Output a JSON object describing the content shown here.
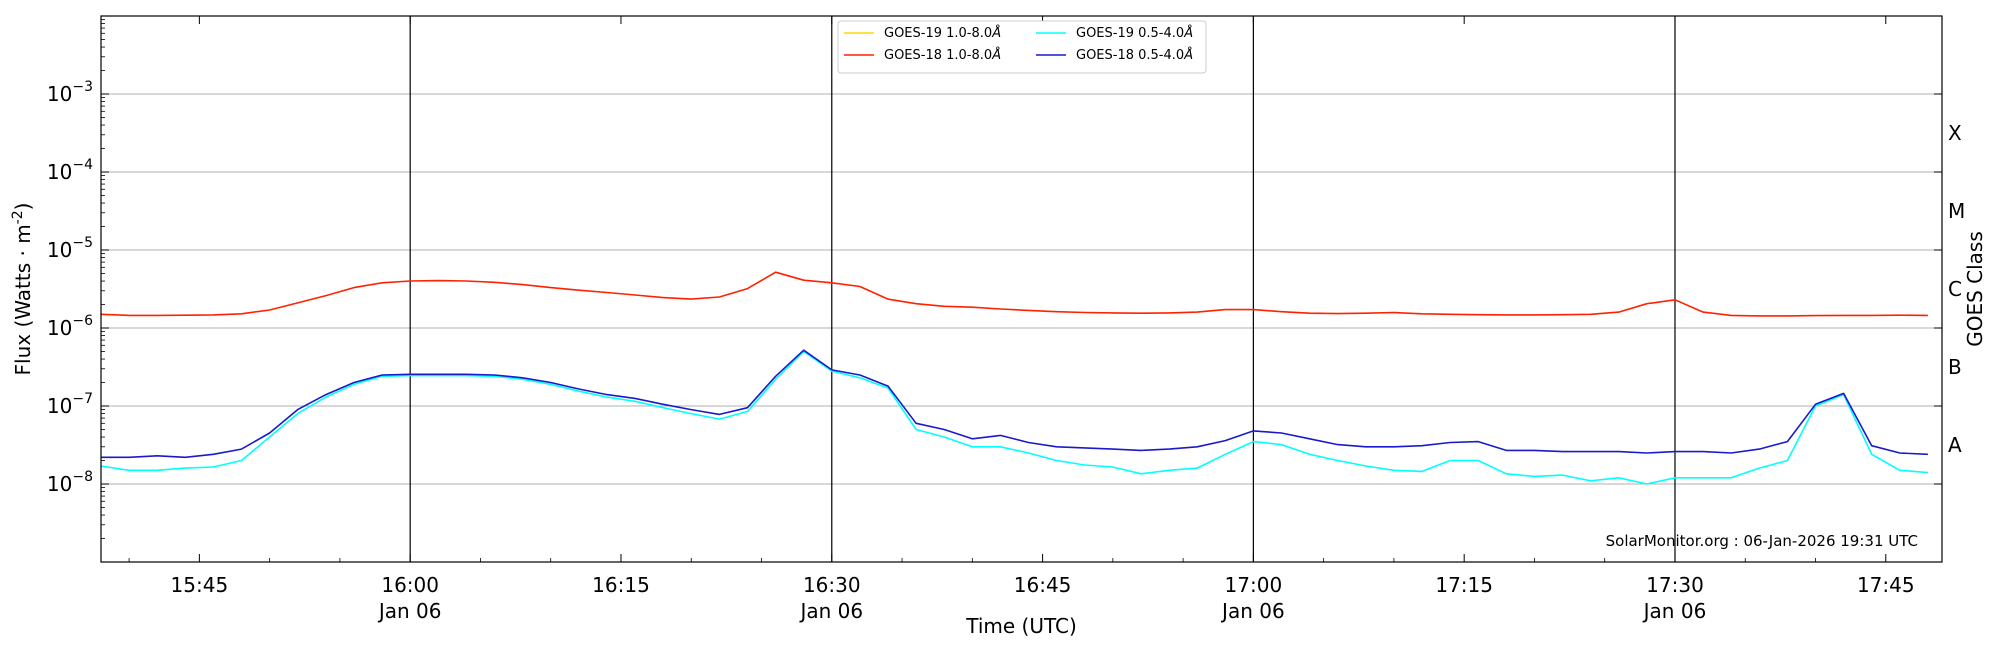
{
  "chart_data": {
    "type": "line",
    "title": "",
    "xlabel": "Time (UTC)",
    "ylabel": "Flux (Watts · m",
    "ylabel_sup": "-2",
    "ylabel_close": ")",
    "y2label": "GOES Class",
    "yscale": "log",
    "ylim": [
      1e-09,
      0.01
    ],
    "xlim": [
      "15:38",
      "17:49"
    ],
    "yticks": [
      {
        "value": 1e-08,
        "label_base": "10",
        "label_exp": "−8"
      },
      {
        "value": 1e-07,
        "label_base": "10",
        "label_exp": "−7"
      },
      {
        "value": 1e-06,
        "label_base": "10",
        "label_exp": "−6"
      },
      {
        "value": 1e-05,
        "label_base": "10",
        "label_exp": "−5"
      },
      {
        "value": 0.0001,
        "label_base": "10",
        "label_exp": "−4"
      },
      {
        "value": 0.001,
        "label_base": "10",
        "label_exp": "−3"
      }
    ],
    "xticks": [
      {
        "time": "15:45",
        "label": "15:45",
        "sublabel": ""
      },
      {
        "time": "16:00",
        "label": "16:00",
        "sublabel": "Jan 06"
      },
      {
        "time": "16:15",
        "label": "16:15",
        "sublabel": ""
      },
      {
        "time": "16:30",
        "label": "16:30",
        "sublabel": "Jan 06"
      },
      {
        "time": "16:45",
        "label": "16:45",
        "sublabel": ""
      },
      {
        "time": "17:00",
        "label": "17:00",
        "sublabel": "Jan 06"
      },
      {
        "time": "17:15",
        "label": "17:15",
        "sublabel": ""
      },
      {
        "time": "17:30",
        "label": "17:30",
        "sublabel": "Jan 06"
      },
      {
        "time": "17:45",
        "label": "17:45",
        "sublabel": ""
      }
    ],
    "day_lines": [
      "16:00",
      "16:30",
      "17:00",
      "17:30"
    ],
    "goes_classes": [
      {
        "label": "A",
        "value": 3.16e-08
      },
      {
        "label": "B",
        "value": 3.16e-07
      },
      {
        "label": "C",
        "value": 3.16e-06
      },
      {
        "label": "M",
        "value": 3.16e-05
      },
      {
        "label": "X",
        "value": 0.000316
      }
    ],
    "grid": true,
    "legend_position": "top-center",
    "annotation": "SolarMonitor.org : 06-Jan-2026 19:31 UTC",
    "series": [
      {
        "name": "GOES-19 1.0-8.0",
        "color": "#ffd700",
        "show_line": false,
        "points": []
      },
      {
        "name": "GOES-18 1.0-8.0",
        "color": "#ff2200",
        "show_line": true,
        "points": [
          [
            "15:38",
            1.5e-06
          ],
          [
            "15:40",
            1.45e-06
          ],
          [
            "15:42",
            1.45e-06
          ],
          [
            "15:44",
            1.46e-06
          ],
          [
            "15:46",
            1.47e-06
          ],
          [
            "15:48",
            1.52e-06
          ],
          [
            "15:50",
            1.7e-06
          ],
          [
            "15:52",
            2.1e-06
          ],
          [
            "15:54",
            2.6e-06
          ],
          [
            "15:56",
            3.3e-06
          ],
          [
            "15:58",
            3.8e-06
          ],
          [
            "16:00",
            4e-06
          ],
          [
            "16:02",
            4.05e-06
          ],
          [
            "16:04",
            4e-06
          ],
          [
            "16:06",
            3.85e-06
          ],
          [
            "16:08",
            3.6e-06
          ],
          [
            "16:10",
            3.3e-06
          ],
          [
            "16:12",
            3.05e-06
          ],
          [
            "16:14",
            2.85e-06
          ],
          [
            "16:16",
            2.65e-06
          ],
          [
            "16:18",
            2.45e-06
          ],
          [
            "16:20",
            2.35e-06
          ],
          [
            "16:22",
            2.5e-06
          ],
          [
            "16:24",
            3.2e-06
          ],
          [
            "16:26",
            5.2e-06
          ],
          [
            "16:28",
            4.1e-06
          ],
          [
            "16:30",
            3.8e-06
          ],
          [
            "16:32",
            3.4e-06
          ],
          [
            "16:34",
            2.35e-06
          ],
          [
            "16:36",
            2.05e-06
          ],
          [
            "16:38",
            1.9e-06
          ],
          [
            "16:40",
            1.85e-06
          ],
          [
            "16:42",
            1.75e-06
          ],
          [
            "16:44",
            1.68e-06
          ],
          [
            "16:46",
            1.62e-06
          ],
          [
            "16:48",
            1.58e-06
          ],
          [
            "16:50",
            1.56e-06
          ],
          [
            "16:52",
            1.55e-06
          ],
          [
            "16:54",
            1.56e-06
          ],
          [
            "16:56",
            1.6e-06
          ],
          [
            "16:58",
            1.72e-06
          ],
          [
            "17:00",
            1.72e-06
          ],
          [
            "17:02",
            1.62e-06
          ],
          [
            "17:04",
            1.55e-06
          ],
          [
            "17:06",
            1.53e-06
          ],
          [
            "17:08",
            1.55e-06
          ],
          [
            "17:10",
            1.58e-06
          ],
          [
            "17:12",
            1.52e-06
          ],
          [
            "17:14",
            1.5e-06
          ],
          [
            "17:16",
            1.48e-06
          ],
          [
            "17:18",
            1.47e-06
          ],
          [
            "17:20",
            1.47e-06
          ],
          [
            "17:22",
            1.48e-06
          ],
          [
            "17:24",
            1.5e-06
          ],
          [
            "17:26",
            1.6e-06
          ],
          [
            "17:28",
            2.05e-06
          ],
          [
            "17:30",
            2.3e-06
          ],
          [
            "17:32",
            1.6e-06
          ],
          [
            "17:34",
            1.45e-06
          ],
          [
            "17:36",
            1.43e-06
          ],
          [
            "17:38",
            1.43e-06
          ],
          [
            "17:40",
            1.44e-06
          ],
          [
            "17:42",
            1.45e-06
          ],
          [
            "17:44",
            1.45e-06
          ],
          [
            "17:46",
            1.46e-06
          ],
          [
            "17:48",
            1.45e-06
          ]
        ]
      },
      {
        "name": "GOES-19 0.5-4.0",
        "color": "#00ffff",
        "show_line": true,
        "points": [
          [
            "15:38",
            1.7e-08
          ],
          [
            "15:40",
            1.5e-08
          ],
          [
            "15:42",
            1.5e-08
          ],
          [
            "15:44",
            1.6e-08
          ],
          [
            "15:46",
            1.65e-08
          ],
          [
            "15:48",
            2e-08
          ],
          [
            "15:50",
            4e-08
          ],
          [
            "15:52",
            8e-08
          ],
          [
            "15:54",
            1.3e-07
          ],
          [
            "15:56",
            1.9e-07
          ],
          [
            "15:58",
            2.4e-07
          ],
          [
            "16:00",
            2.45e-07
          ],
          [
            "16:02",
            2.45e-07
          ],
          [
            "16:04",
            2.45e-07
          ],
          [
            "16:06",
            2.4e-07
          ],
          [
            "16:08",
            2.2e-07
          ],
          [
            "16:10",
            1.9e-07
          ],
          [
            "16:12",
            1.55e-07
          ],
          [
            "16:14",
            1.3e-07
          ],
          [
            "16:16",
            1.15e-07
          ],
          [
            "16:18",
            9.5e-08
          ],
          [
            "16:20",
            8e-08
          ],
          [
            "16:22",
            6.8e-08
          ],
          [
            "16:24",
            8.5e-08
          ],
          [
            "16:26",
            2.2e-07
          ],
          [
            "16:28",
            5e-07
          ],
          [
            "16:30",
            2.8e-07
          ],
          [
            "16:32",
            2.3e-07
          ],
          [
            "16:34",
            1.7e-07
          ],
          [
            "16:36",
            5e-08
          ],
          [
            "16:38",
            4e-08
          ],
          [
            "16:40",
            3e-08
          ],
          [
            "16:42",
            3e-08
          ],
          [
            "16:44",
            2.5e-08
          ],
          [
            "16:46",
            2e-08
          ],
          [
            "16:48",
            1.75e-08
          ],
          [
            "16:50",
            1.65e-08
          ],
          [
            "16:52",
            1.35e-08
          ],
          [
            "16:54",
            1.5e-08
          ],
          [
            "16:56",
            1.6e-08
          ],
          [
            "16:58",
            2.4e-08
          ],
          [
            "17:00",
            3.5e-08
          ],
          [
            "17:02",
            3.2e-08
          ],
          [
            "17:04",
            2.4e-08
          ],
          [
            "17:06",
            2e-08
          ],
          [
            "17:08",
            1.7e-08
          ],
          [
            "17:10",
            1.5e-08
          ],
          [
            "17:12",
            1.45e-08
          ],
          [
            "17:14",
            2e-08
          ],
          [
            "17:16",
            2e-08
          ],
          [
            "17:18",
            1.35e-08
          ],
          [
            "17:20",
            1.25e-08
          ],
          [
            "17:22",
            1.3e-08
          ],
          [
            "17:24",
            1.1e-08
          ],
          [
            "17:26",
            1.2e-08
          ],
          [
            "17:28",
            1e-08
          ],
          [
            "17:30",
            1.2e-08
          ],
          [
            "17:32",
            1.2e-08
          ],
          [
            "17:34",
            1.2e-08
          ],
          [
            "17:36",
            1.6e-08
          ],
          [
            "17:38",
            2e-08
          ],
          [
            "17:40",
            1e-07
          ],
          [
            "17:42",
            1.4e-07
          ],
          [
            "17:44",
            2.4e-08
          ],
          [
            "17:46",
            1.5e-08
          ],
          [
            "17:48",
            1.4e-08
          ]
        ]
      },
      {
        "name": "GOES-18 0.5-4.0",
        "color": "#1a1acc",
        "show_line": true,
        "points": [
          [
            "15:38",
            2.2e-08
          ],
          [
            "15:40",
            2.2e-08
          ],
          [
            "15:42",
            2.3e-08
          ],
          [
            "15:44",
            2.2e-08
          ],
          [
            "15:46",
            2.4e-08
          ],
          [
            "15:48",
            2.8e-08
          ],
          [
            "15:50",
            4.5e-08
          ],
          [
            "15:52",
            9e-08
          ],
          [
            "15:54",
            1.4e-07
          ],
          [
            "15:56",
            2e-07
          ],
          [
            "15:58",
            2.5e-07
          ],
          [
            "16:00",
            2.55e-07
          ],
          [
            "16:02",
            2.55e-07
          ],
          [
            "16:04",
            2.55e-07
          ],
          [
            "16:06",
            2.5e-07
          ],
          [
            "16:08",
            2.3e-07
          ],
          [
            "16:10",
            2e-07
          ],
          [
            "16:12",
            1.65e-07
          ],
          [
            "16:14",
            1.4e-07
          ],
          [
            "16:16",
            1.25e-07
          ],
          [
            "16:18",
            1.05e-07
          ],
          [
            "16:20",
            9e-08
          ],
          [
            "16:22",
            7.8e-08
          ],
          [
            "16:24",
            9.5e-08
          ],
          [
            "16:26",
            2.4e-07
          ],
          [
            "16:28",
            5.2e-07
          ],
          [
            "16:30",
            2.9e-07
          ],
          [
            "16:32",
            2.5e-07
          ],
          [
            "16:34",
            1.8e-07
          ],
          [
            "16:36",
            6e-08
          ],
          [
            "16:38",
            5e-08
          ],
          [
            "16:40",
            3.8e-08
          ],
          [
            "16:42",
            4.2e-08
          ],
          [
            "16:44",
            3.4e-08
          ],
          [
            "16:46",
            3e-08
          ],
          [
            "16:48",
            2.9e-08
          ],
          [
            "16:50",
            2.8e-08
          ],
          [
            "16:52",
            2.7e-08
          ],
          [
            "16:54",
            2.8e-08
          ],
          [
            "16:56",
            3e-08
          ],
          [
            "16:58",
            3.6e-08
          ],
          [
            "17:00",
            4.8e-08
          ],
          [
            "17:02",
            4.5e-08
          ],
          [
            "17:04",
            3.8e-08
          ],
          [
            "17:06",
            3.2e-08
          ],
          [
            "17:08",
            3e-08
          ],
          [
            "17:10",
            3e-08
          ],
          [
            "17:12",
            3.1e-08
          ],
          [
            "17:14",
            3.4e-08
          ],
          [
            "17:16",
            3.5e-08
          ],
          [
            "17:18",
            2.7e-08
          ],
          [
            "17:20",
            2.7e-08
          ],
          [
            "17:22",
            2.6e-08
          ],
          [
            "17:24",
            2.6e-08
          ],
          [
            "17:26",
            2.6e-08
          ],
          [
            "17:28",
            2.5e-08
          ],
          [
            "17:30",
            2.6e-08
          ],
          [
            "17:32",
            2.6e-08
          ],
          [
            "17:34",
            2.5e-08
          ],
          [
            "17:36",
            2.8e-08
          ],
          [
            "17:38",
            3.5e-08
          ],
          [
            "17:40",
            1.05e-07
          ],
          [
            "17:42",
            1.45e-07
          ],
          [
            "17:44",
            3.1e-08
          ],
          [
            "17:46",
            2.5e-08
          ],
          [
            "17:48",
            2.4e-08
          ]
        ]
      }
    ]
  }
}
